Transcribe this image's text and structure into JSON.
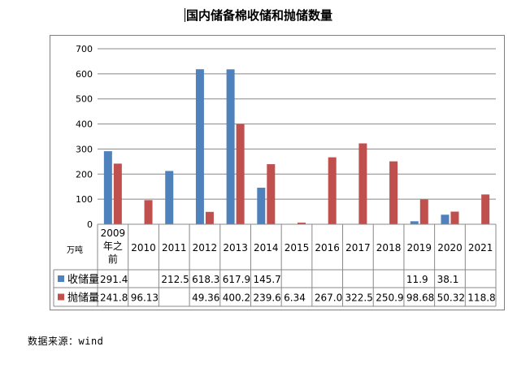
{
  "title": "国内储备棉收储和抛储数量",
  "source": "数据来源：wind",
  "chart_data": {
    "type": "bar",
    "title": "国内储备棉收储和抛储数量",
    "unit": "万吨",
    "categories": [
      "2009年之前",
      "2010",
      "2011",
      "2012",
      "2013",
      "2014",
      "2015",
      "2016",
      "2017",
      "2018",
      "2019",
      "2020",
      "2021"
    ],
    "series": [
      {
        "name": "收储量",
        "color": "#4f81bd",
        "values": [
          291.4,
          null,
          212.5,
          618.3,
          617.9,
          145.7,
          null,
          null,
          null,
          null,
          11.9,
          38.1,
          null
        ],
        "labels": [
          "291.4",
          "",
          "212.5",
          "618.3",
          "617.9",
          "145.7",
          "",
          "",
          "",
          "",
          "11.9",
          "38.1",
          ""
        ]
      },
      {
        "name": "抛储量",
        "color": "#c0504d",
        "values": [
          241.8,
          96.13,
          null,
          49.36,
          400.2,
          239.6,
          6.34,
          267.0,
          322.5,
          250.9,
          98.68,
          50.32,
          118.8
        ],
        "labels": [
          "241.8",
          "96.13",
          "",
          "49.36",
          "400.2",
          "239.6",
          "6.34",
          "267.0",
          "322.5",
          "250.9",
          "98.68",
          "50.32",
          "118.8"
        ]
      }
    ],
    "ylim": [
      0,
      700
    ],
    "yticks": [
      0,
      100,
      200,
      300,
      400,
      500,
      600,
      700
    ],
    "grid": true,
    "legend": "data-table"
  }
}
